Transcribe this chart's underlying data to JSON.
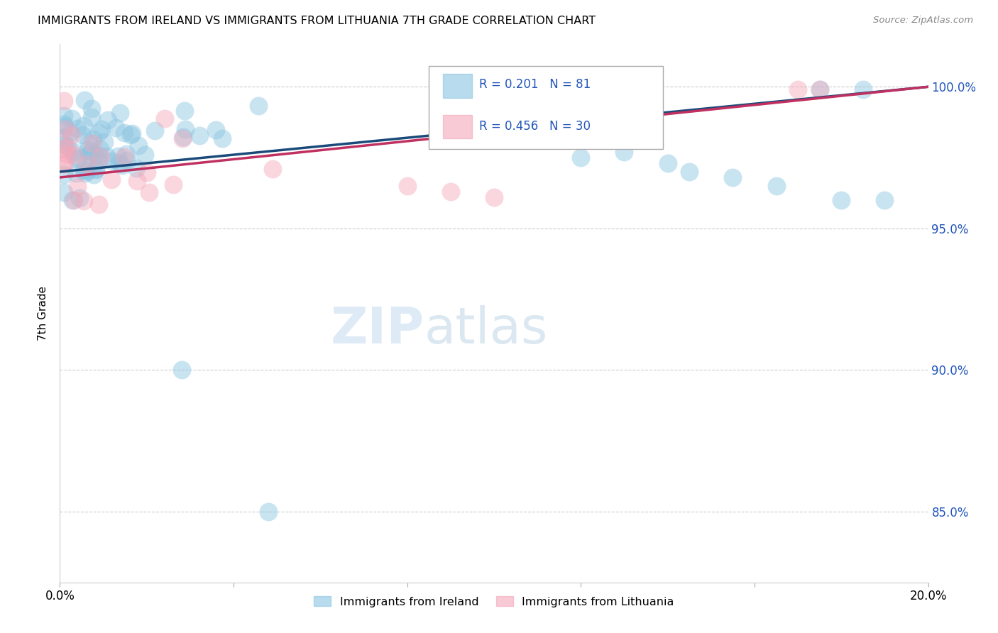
{
  "title": "IMMIGRANTS FROM IRELAND VS IMMIGRANTS FROM LITHUANIA 7TH GRADE CORRELATION CHART",
  "source_text": "Source: ZipAtlas.com",
  "ylabel": "7th Grade",
  "x_range": [
    0.0,
    0.2
  ],
  "y_range": [
    0.825,
    1.015
  ],
  "y_ticks": [
    0.85,
    0.9,
    0.95,
    1.0
  ],
  "y_tick_labels": [
    "85.0%",
    "90.0%",
    "95.0%",
    "100.0%"
  ],
  "ireland_color": "#89c4e1",
  "lithuania_color": "#f4a7b9",
  "ireland_line_color": "#1a4a7a",
  "lithuania_line_color": "#c03060",
  "ireland_R": 0.201,
  "ireland_N": 81,
  "lithuania_R": 0.456,
  "lithuania_N": 30,
  "legend_label_ireland": "Immigrants from Ireland",
  "legend_label_lithuania": "Immigrants from Lithuania",
  "watermark_zip": "ZIP",
  "watermark_atlas": "atlas"
}
